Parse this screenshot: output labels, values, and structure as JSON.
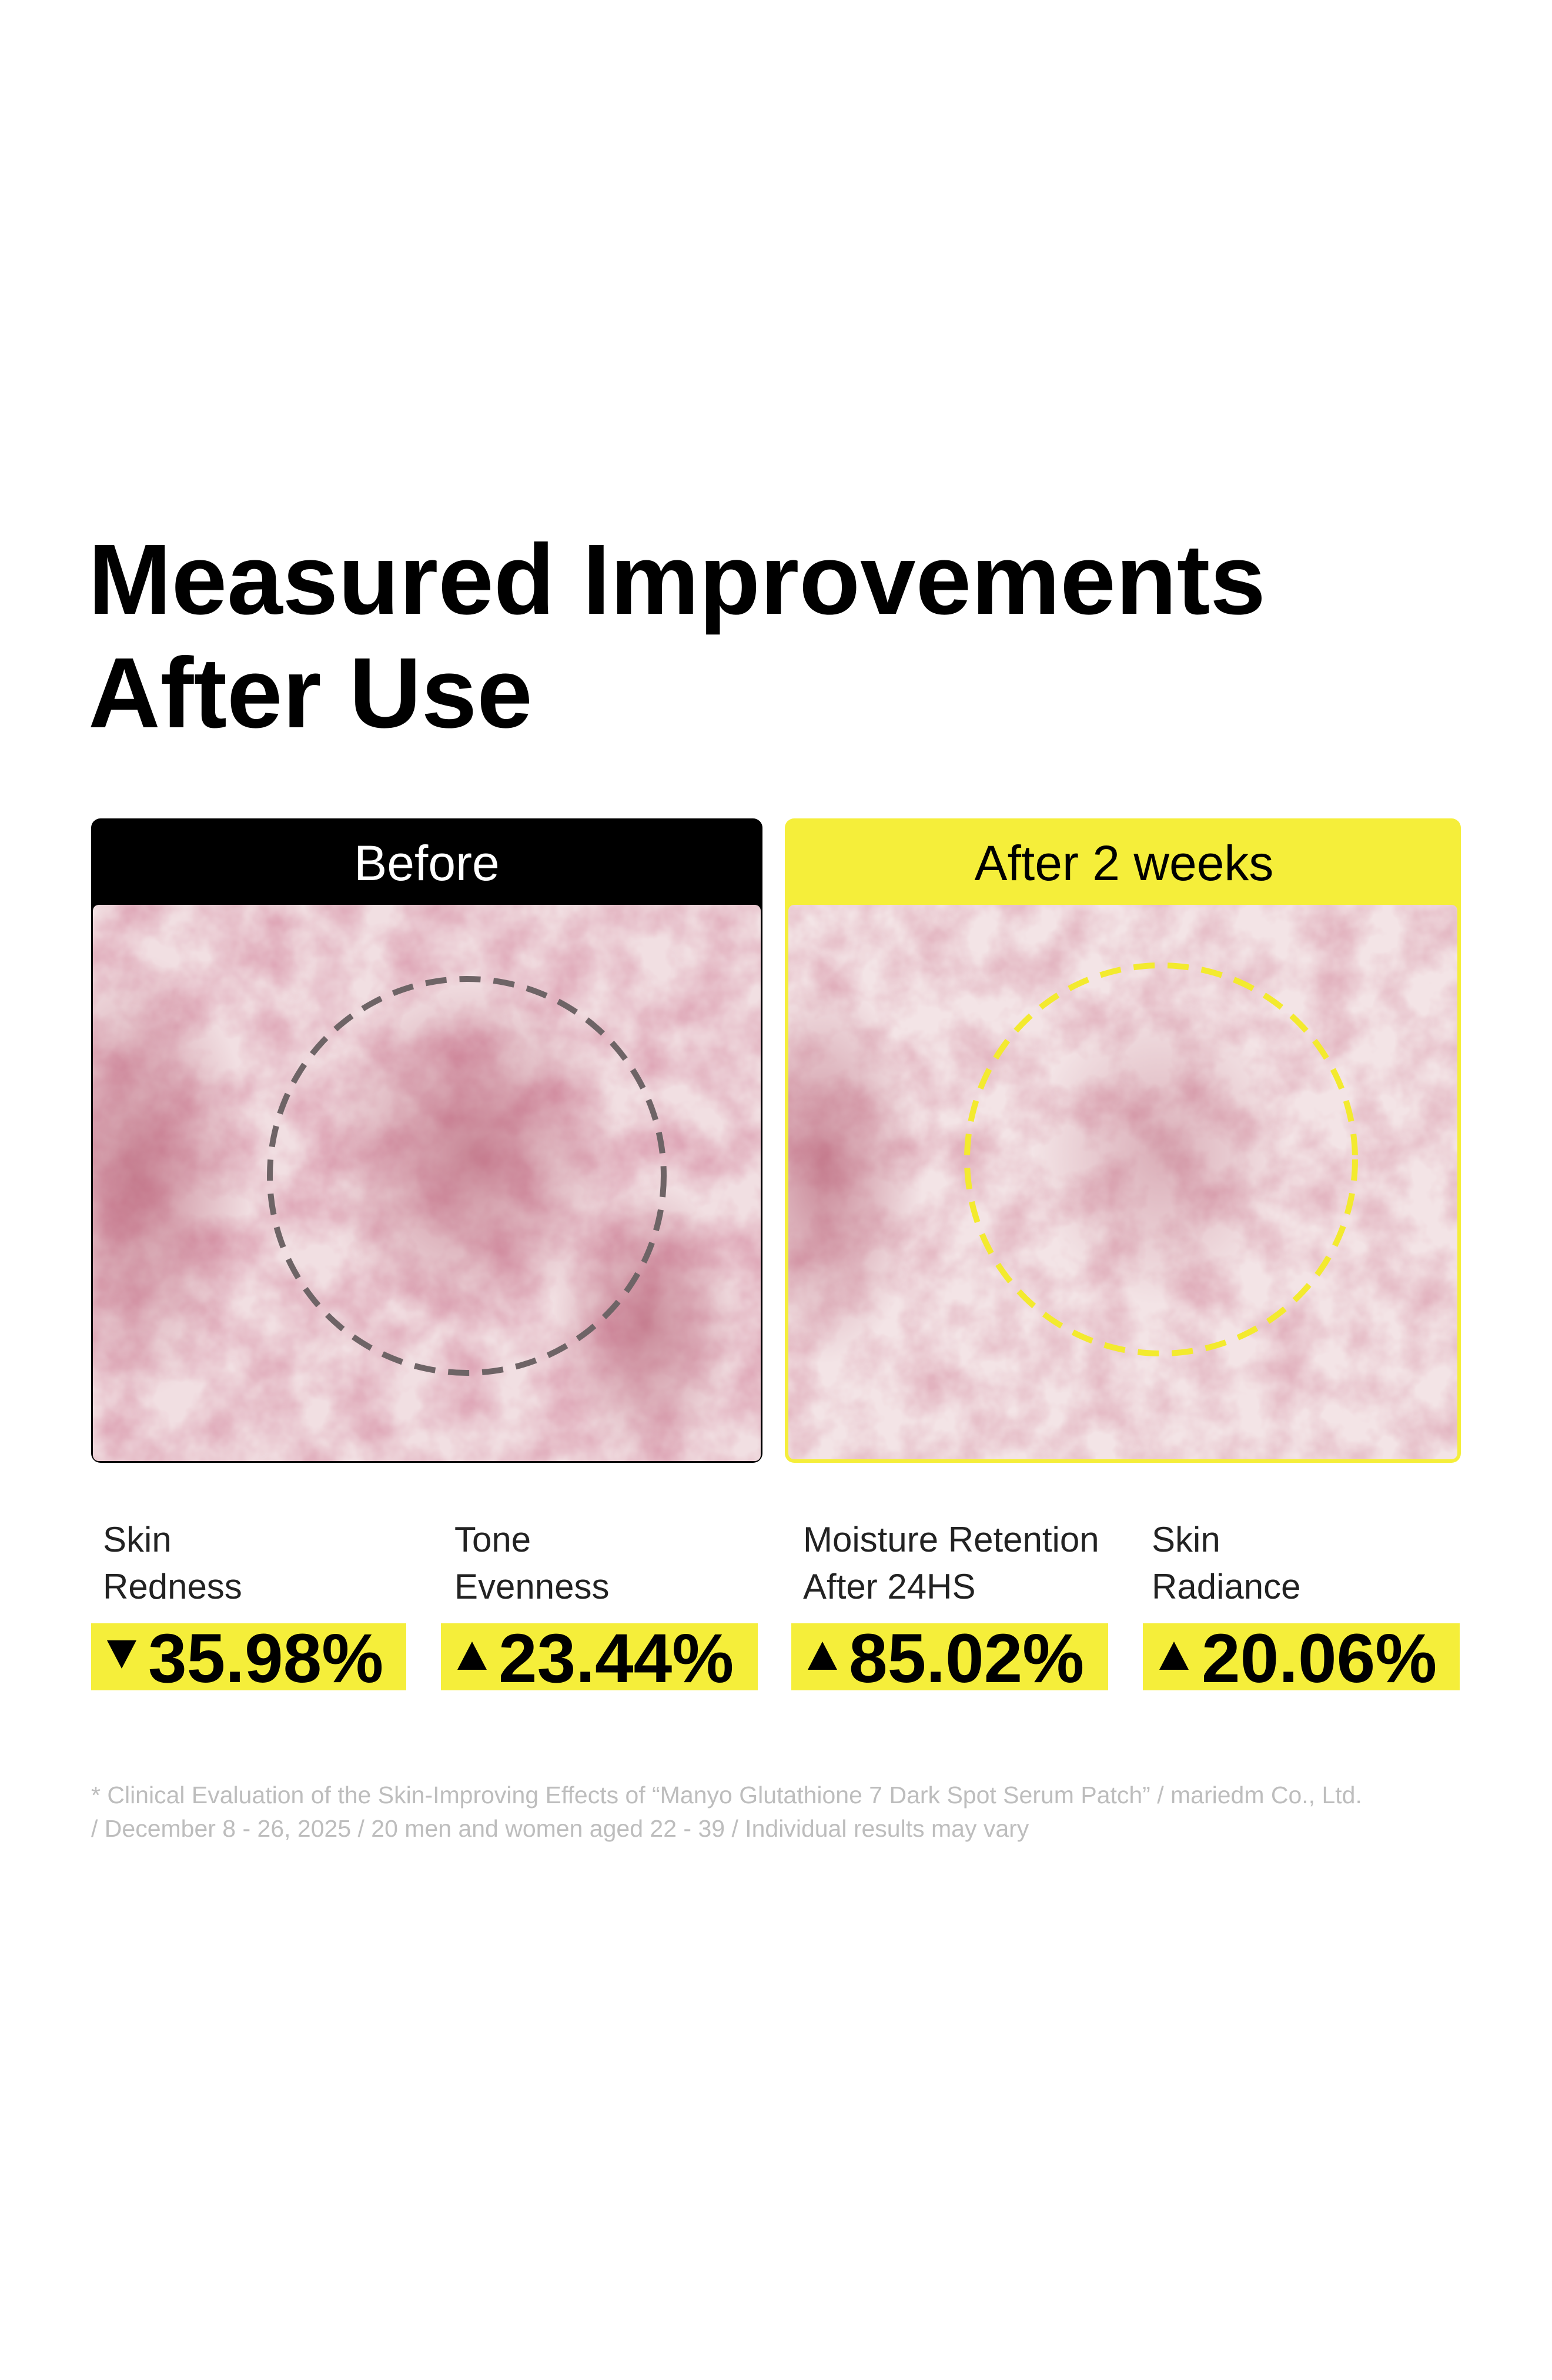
{
  "header": {
    "title_lines": [
      "Measured Improvements",
      "After Use"
    ]
  },
  "panels": [
    {
      "label": "Before"
    },
    {
      "label": "After 2 weeks"
    }
  ],
  "metrics": [
    {
      "label_lines": [
        "Skin",
        "Redness"
      ],
      "value": "35.98%"
    },
    {
      "label_lines": [
        "Tone",
        "Evenness"
      ],
      "value": "23.44%"
    },
    {
      "label_lines": [
        "Moisture Retention",
        "After 24HS"
      ],
      "value": "85.02%"
    },
    {
      "label_lines": [
        "Skin",
        "Radiance"
      ],
      "value": "20.06%"
    }
  ],
  "footnote_lines": [
    "* Clinical Evaluation of the Skin-Improving Effects of “Manyo Glutathione 7 Dark Spot Serum Patch” / mariedm Co., Ltd.",
    "/ December 8 - 26, 2025 / 20 men and women aged 22 - 39 / Individual results may vary"
  ]
}
